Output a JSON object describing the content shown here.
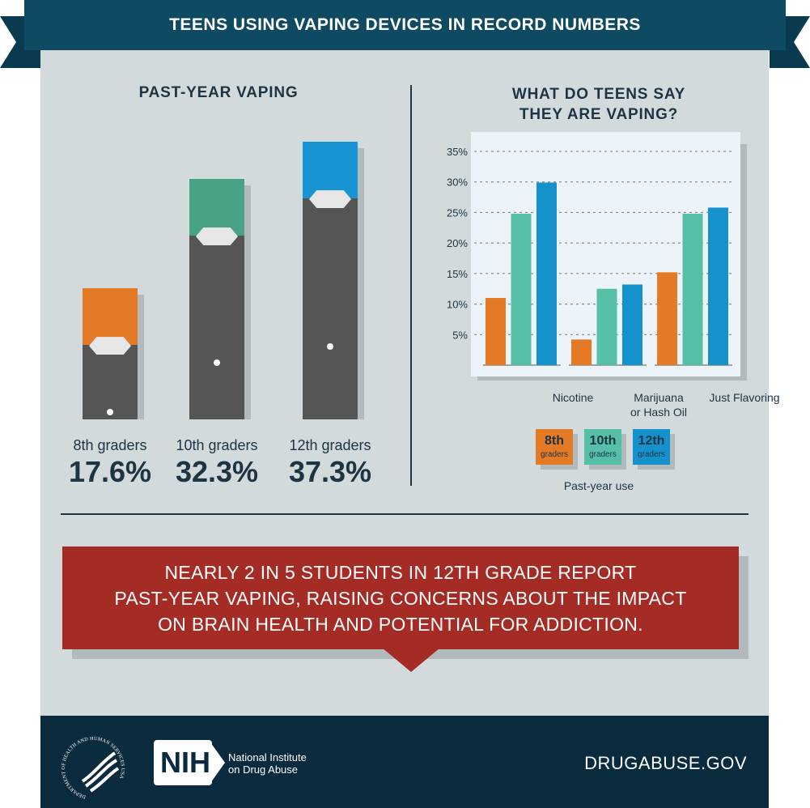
{
  "banner": {
    "title": "TEENS USING VAPING DEVICES IN RECORD NUMBERS"
  },
  "colors": {
    "grade8": "#e57a26",
    "grade10": "#55bfa7",
    "grade12": "#1591cc",
    "grade10_device": "#4aa286",
    "grade12_device": "#1795d2",
    "message_bg": "#a52b25",
    "banner": "#0e4a62",
    "footer": "#0a2a3d"
  },
  "chart_data": [
    {
      "type": "bar",
      "title": "PAST-YEAR VAPING",
      "categories": [
        "8th graders",
        "10th graders",
        "12th graders"
      ],
      "values": [
        17.6,
        32.3,
        37.3
      ],
      "value_labels": [
        "17.6%",
        "32.3%",
        "37.3%"
      ],
      "style": "vaping-device pictograms"
    },
    {
      "type": "bar",
      "title": "WHAT DO TEENS SAY THEY ARE VAPING?",
      "title_lines": [
        "WHAT DO TEENS SAY",
        "THEY ARE VAPING?"
      ],
      "categories": [
        "Nicotine",
        "Marijuana or Hash Oil",
        "Just Flavoring"
      ],
      "category_lines": [
        [
          "Nicotine"
        ],
        [
          "Marijuana",
          "or Hash Oil"
        ],
        [
          "Just Flavoring"
        ]
      ],
      "ylim": [
        0,
        35
      ],
      "yticks": [
        "5%",
        "10%",
        "15%",
        "20%",
        "25%",
        "30%",
        "35%"
      ],
      "ytick_values": [
        5,
        10,
        15,
        20,
        25,
        30,
        35
      ],
      "grid": true,
      "legend_title": "Past-year use",
      "legend_placement": "bottom",
      "series": [
        {
          "name": "8th graders",
          "legend_big": "8th",
          "legend_small": "graders",
          "values": [
            11.0,
            4.2,
            15.2
          ]
        },
        {
          "name": "10th graders",
          "legend_big": "10th",
          "legend_small": "graders",
          "values": [
            24.8,
            12.5,
            24.8
          ]
        },
        {
          "name": "12th graders",
          "legend_big": "12th",
          "legend_small": "graders",
          "values": [
            29.9,
            13.2,
            25.8
          ]
        }
      ]
    }
  ],
  "message": {
    "lines": [
      "NEARLY 2 IN 5 STUDENTS IN 12TH GRADE REPORT",
      "PAST-YEAR VAPING, RAISING CONCERNS ABOUT THE IMPACT",
      "ON BRAIN HEALTH AND POTENTIAL FOR ADDICTION."
    ]
  },
  "footer": {
    "hhs_seal_text": "DEPARTMENT OF HEALTH AND HUMAN SERVICES USA",
    "nih_logo": "NIH",
    "nih_name_1": "National Institute",
    "nih_name_2": "on Drug Abuse",
    "website": "DRUGABUSE.GOV"
  }
}
